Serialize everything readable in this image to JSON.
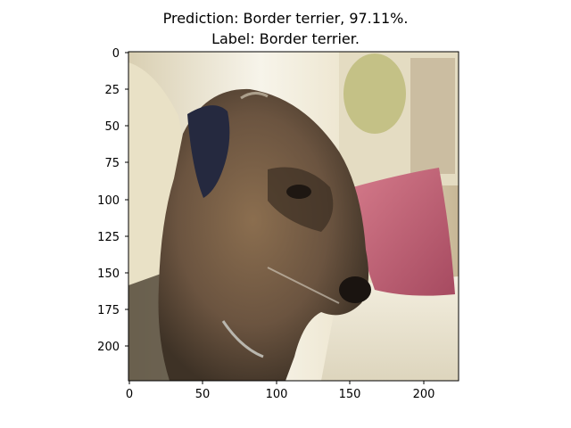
{
  "figure": {
    "title_line1": "Prediction: Border terrier, 97.11%.",
    "title_line2": "Label: Border terrier."
  },
  "image": {
    "subject": "dog",
    "x_ticks": [
      "0",
      "50",
      "100",
      "150",
      "200"
    ],
    "y_ticks": [
      "0",
      "25",
      "50",
      "75",
      "100",
      "125",
      "150",
      "175",
      "200"
    ],
    "colors": {
      "background_wall": "#e8e2cf",
      "window_light": "#f6f3e8",
      "sofa_cream": "#efe9d6",
      "pillow_pink": "#c15d73",
      "dog_brown": "#7b6147",
      "dog_dark": "#3b2d22",
      "ear_navy": "#25293f"
    }
  }
}
